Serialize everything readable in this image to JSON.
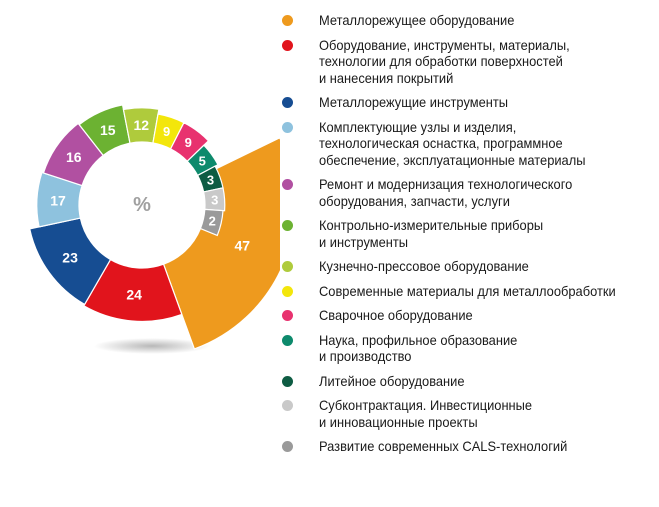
{
  "chart_data": {
    "type": "pie",
    "center_label": "%",
    "slices": [
      {
        "label": "Металлорежущее оборудование",
        "value": 47,
        "color": "#ee9a1e"
      },
      {
        "label": "Оборудование, инструменты, материалы, технологии для обработки поверхностей и нанесения покрытий",
        "value": 24,
        "color": "#e1141c"
      },
      {
        "label": "Металлорежущие инструменты",
        "value": 23,
        "color": "#164d92"
      },
      {
        "label": "Комплектующие узлы и изделия, технологическая оснастка, программное обеспечение, эксплуатационные материалы",
        "value": 17,
        "color": "#8ec2de"
      },
      {
        "label": "Ремонт и модернизация технологического оборудования, запчасти, услуги",
        "value": 16,
        "color": "#b150a1"
      },
      {
        "label": "Контрольно-измерительные приборы и инструменты",
        "value": 15,
        "color": "#6cb232"
      },
      {
        "label": "Кузнечно-прессовое оборудование",
        "value": 12,
        "color": "#afcb3c"
      },
      {
        "label": "Современные материалы для металлообработки",
        "value": 9,
        "color": "#f3e60b"
      },
      {
        "label": "Сварочное оборудование",
        "value": 9,
        "color": "#e8326f"
      },
      {
        "label": "Наука, профильное образование и производство",
        "value": 5,
        "color": "#0d8a6c"
      },
      {
        "label": "Литейное оборудование",
        "value": 3,
        "color": "#0e5c43"
      },
      {
        "label": "Субконтрактация. Инвестиционные и инновационные проекты",
        "value": 3,
        "color": "#c9c9c9"
      },
      {
        "label": "Развитие современных CALS-технологий",
        "value": 2,
        "color": "#9a9a9a"
      }
    ]
  },
  "legend": [
    {
      "lines": [
        "Металлорежущее оборудование"
      ],
      "color": "#ee9a1e"
    },
    {
      "lines": [
        "Оборудование, инструменты, материалы,",
        "технологии для обработки поверхностей",
        "и нанесения покрытий"
      ],
      "color": "#e1141c"
    },
    {
      "lines": [
        "Металлорежущие инструменты"
      ],
      "color": "#164d92"
    },
    {
      "lines": [
        "Комплектующие узлы и изделия,",
        "технологическая оснастка, программное",
        "обеспечение, эксплуатационные материалы"
      ],
      "color": "#8ec2de"
    },
    {
      "lines": [
        "Ремонт и модернизация технологического",
        "оборудования, запчасти, услуги"
      ],
      "color": "#b150a1"
    },
    {
      "lines": [
        "Контрольно-измерительные приборы",
        "и инструменты"
      ],
      "color": "#6cb232"
    },
    {
      "lines": [
        "Кузнечно-прессовое оборудование"
      ],
      "color": "#afcb3c"
    },
    {
      "lines": [
        "Современные материалы для металлообработки"
      ],
      "color": "#f3e60b"
    },
    {
      "lines": [
        "Сварочное оборудование"
      ],
      "color": "#e8326f"
    },
    {
      "lines": [
        "Наука, профильное образование",
        "и производство"
      ],
      "color": "#0d8a6c"
    },
    {
      "lines": [
        "Литейное оборудование"
      ],
      "color": "#0e5c43"
    },
    {
      "lines": [
        "Субконтрактация. Инвестиционные",
        "и инновационные проекты"
      ],
      "color": "#c9c9c9"
    },
    {
      "lines": [
        "Развитие современных CALS-технологий"
      ],
      "color": "#9a9a9a"
    }
  ]
}
